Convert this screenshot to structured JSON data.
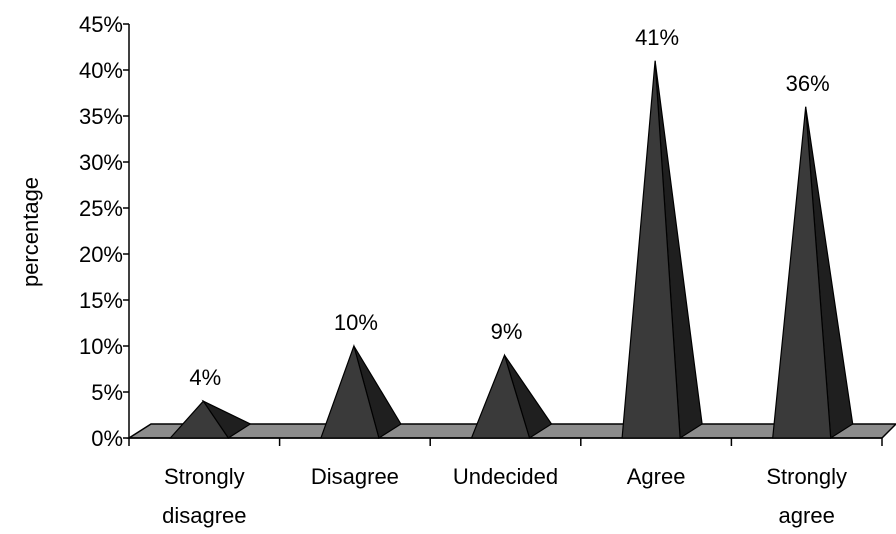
{
  "chart_data": {
    "type": "bar",
    "style": "3d-pyramid",
    "categories": [
      [
        "Strongly",
        "disagree"
      ],
      [
        "Disagree"
      ],
      [
        "Undecided"
      ],
      [
        "Agree"
      ],
      [
        "Strongly",
        "agree"
      ]
    ],
    "values": [
      4,
      10,
      9,
      41,
      36
    ],
    "data_labels": [
      "4%",
      "10%",
      "9%",
      "41%",
      "36%"
    ],
    "ylabel": "percentage",
    "ylim": [
      0,
      45
    ],
    "yticks": [
      0,
      5,
      10,
      15,
      20,
      25,
      30,
      35,
      40,
      45
    ],
    "ytick_labels": [
      "0%",
      "5%",
      "10%",
      "15%",
      "20%",
      "25%",
      "30%",
      "35%",
      "40%",
      "45%"
    ],
    "grid": false,
    "legend": "none",
    "colors": {
      "front_face": "#3a3a3a",
      "side_face": "#1f1f1f",
      "floor": "#8c8c8c"
    }
  }
}
